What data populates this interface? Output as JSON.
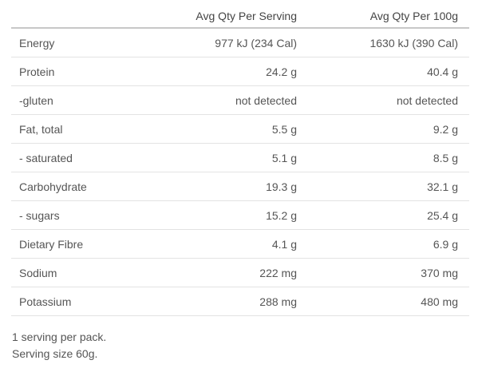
{
  "table": {
    "headers": [
      "",
      "Avg Qty Per Serving",
      "Avg Qty Per 100g"
    ],
    "rows": [
      {
        "nutrient": "Energy",
        "per_serving": "977 kJ (234 Cal)",
        "per_100g": "1630 kJ (390 Cal)"
      },
      {
        "nutrient": "Protein",
        "per_serving": "24.2 g",
        "per_100g": "40.4 g"
      },
      {
        "nutrient": "-gluten",
        "per_serving": "not detected",
        "per_100g": "not detected"
      },
      {
        "nutrient": "Fat, total",
        "per_serving": "5.5 g",
        "per_100g": "9.2 g"
      },
      {
        "nutrient": "- saturated",
        "per_serving": "5.1 g",
        "per_100g": "8.5 g"
      },
      {
        "nutrient": "Carbohydrate",
        "per_serving": "19.3 g",
        "per_100g": "32.1 g"
      },
      {
        "nutrient": "- sugars",
        "per_serving": "15.2 g",
        "per_100g": "25.4 g"
      },
      {
        "nutrient": "Dietary Fibre",
        "per_serving": "4.1 g",
        "per_100g": "6.9 g"
      },
      {
        "nutrient": "Sodium",
        "per_serving": "222 mg",
        "per_100g": "370 mg"
      },
      {
        "nutrient": "Potassium",
        "per_serving": "288 mg",
        "per_100g": "480 mg"
      }
    ]
  },
  "notes": {
    "servings_per_pack": "1 serving per pack.",
    "serving_size": "Serving size 60g."
  }
}
